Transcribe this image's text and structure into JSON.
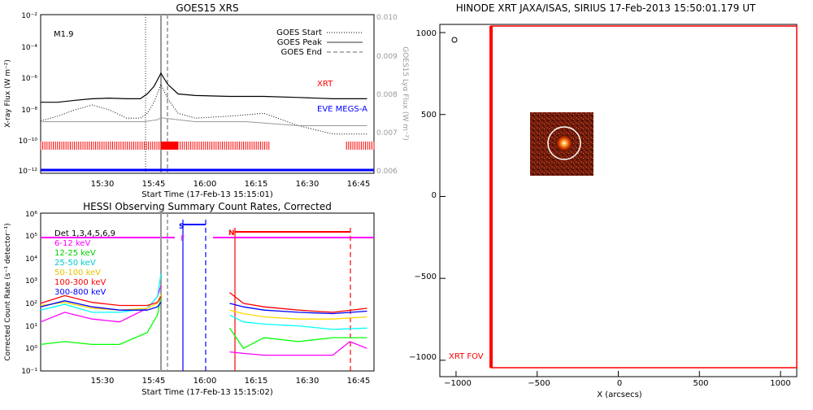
{
  "goes_panel": {
    "title": "GOES15 XRS",
    "flare_class": "M1.9",
    "ylabel_left": "X-ray Flux (W m⁻²)",
    "ylabel_right": "GOES15 Lyα Flux (W m⁻²)",
    "xlabel": "Start Time (17-Feb-13 15:15:01)",
    "x_ticks": [
      "15:30",
      "15:45",
      "16:00",
      "16:15",
      "16:30",
      "16:45"
    ],
    "y_ticks_left": [
      "10⁻¹²",
      "10⁻¹⁰",
      "10⁻⁸",
      "10⁻⁶",
      "10⁻⁴",
      "10⁻²"
    ],
    "y_ticks_right": [
      "0.006",
      "0.007",
      "0.008",
      "0.009",
      "0.010"
    ],
    "legend": [
      "GOES Start",
      "GOES Peak",
      "GOES End"
    ],
    "label_xrt": "XRT",
    "label_eve": "EVE MEGS-A"
  },
  "hessi_panel": {
    "title": "HESSI Observing Summary Count Rates, Corrected",
    "ylabel": "Corrected Count Rate (s⁻¹ detector⁻¹)",
    "xlabel": "Start Time (17-Feb-13 15:15:02)",
    "x_ticks": [
      "15:30",
      "15:45",
      "16:00",
      "16:15",
      "16:30",
      "16:45"
    ],
    "y_ticks": [
      "10⁻¹",
      "10⁰",
      "10¹",
      "10²",
      "10³",
      "10⁴",
      "10⁵",
      "10⁶"
    ],
    "legend": [
      "Det 1,3,4,5,6,9",
      "6-12 keV",
      "12-25 keV",
      "25-50 keV",
      "50-100 keV",
      "100-300 keV",
      "300-800 keV"
    ],
    "flag_s": "S",
    "flag_f": "F",
    "flag_n": "N"
  },
  "xrt_panel": {
    "title": "HINODE XRT JAXA/ISAS, SIRIUS 17-Feb-2013 15:50:01.179 UT",
    "xlabel": "X (arcsecs)",
    "x_ticks": [
      "−1000",
      "−500",
      "0",
      "500",
      "1000"
    ],
    "y_ticks": [
      "−1000",
      "−500",
      "0",
      "500",
      "1000"
    ],
    "fov_label": "XRT FOV"
  },
  "colors": {
    "xrt": "#ff0000",
    "eve": "#0000ff",
    "kev_6_12": "#ff00ff",
    "kev_12_25": "#00ff00",
    "kev_25_50": "#00ffff",
    "kev_50_100": "#ffd700",
    "kev_100_300": "#ff0000",
    "kev_300_800": "#0000ff"
  },
  "chart_data": [
    {
      "type": "line",
      "title": "GOES15 XRS",
      "xlabel": "Start Time (17-Feb-13 15:15:01)",
      "ylabel": "X-ray Flux (W m^-2)",
      "x_range": [
        "15:15",
        "16:52"
      ],
      "y_scale": "log",
      "ylim": [
        1e-12,
        0.01
      ],
      "y2lim": [
        0.006,
        0.01
      ],
      "markers": {
        "goes_start": "15:48",
        "goes_peak": "15:50",
        "goes_end": "15:52"
      },
      "series": [
        {
          "name": "GOES short",
          "x": [
            "15:15",
            "15:20",
            "15:25",
            "15:30",
            "15:35",
            "15:40",
            "15:44",
            "15:46",
            "15:48",
            "15:50",
            "15:52",
            "15:55",
            "16:00",
            "16:10",
            "16:20",
            "16:30",
            "16:40",
            "16:50"
          ],
          "y": [
            3e-08,
            3e-08,
            4e-08,
            5e-08,
            5.5e-08,
            5e-08,
            5e-08,
            1e-07,
            3e-07,
            2e-06,
            4e-07,
            1e-07,
            8e-08,
            7e-08,
            7e-08,
            6e-08,
            5e-08,
            5e-08
          ]
        },
        {
          "name": "GOES long",
          "x": [
            "15:15",
            "15:20",
            "15:25",
            "15:30",
            "15:35",
            "15:40",
            "15:44",
            "15:46",
            "15:48",
            "15:50",
            "15:52",
            "15:55",
            "16:00",
            "16:10",
            "16:20",
            "16:30",
            "16:40",
            "16:50"
          ],
          "y": [
            2e-09,
            4e-09,
            1e-08,
            2e-08,
            1e-08,
            3e-09,
            3e-09,
            6e-09,
            3e-08,
            4e-07,
            5e-08,
            6e-09,
            3e-09,
            4e-09,
            6e-09,
            1e-09,
            3e-10,
            3e-10
          ]
        },
        {
          "name": "Lyα",
          "x": [
            "15:15",
            "15:30",
            "15:45",
            "15:49",
            "15:50",
            "16:00",
            "16:15",
            "16:30",
            "16:40",
            "16:50"
          ],
          "y2": [
            0.0073,
            0.0073,
            0.0073,
            0.00735,
            0.0074,
            0.0073,
            0.0073,
            0.0072,
            0.0072,
            0.0072
          ]
        }
      ]
    },
    {
      "type": "line",
      "title": "HESSI Observing Summary Count Rates, Corrected",
      "xlabel": "Start Time (17-Feb-13 15:15:02)",
      "ylabel": "Corrected Count Rate (s^-1 detector^-1)",
      "x_range": [
        "15:15",
        "16:52"
      ],
      "y_scale": "log",
      "ylim": [
        0.1,
        1000000.0
      ],
      "series": [
        {
          "name": "6-12 keV",
          "x": [
            "15:15",
            "15:22",
            "15:30",
            "15:38",
            "15:46",
            "15:49",
            "15:50",
            "15:55",
            "16:10",
            "16:14",
            "16:20",
            "16:30",
            "16:40",
            "16:45",
            "16:50"
          ],
          "y": [
            15,
            40,
            20,
            15,
            60,
            200,
            600,
            null,
            0.7,
            0.6,
            0.5,
            0.5,
            0.5,
            2,
            1
          ]
        },
        {
          "name": "12-25 keV",
          "x": [
            "15:15",
            "15:22",
            "15:30",
            "15:38",
            "15:46",
            "15:49",
            "15:50",
            "15:55",
            "16:10",
            "16:14",
            "16:20",
            "16:30",
            "16:40",
            "16:50"
          ],
          "y": [
            1.5,
            2,
            1.5,
            1.5,
            5,
            30,
            200,
            null,
            8,
            1,
            3,
            2,
            3,
            3
          ]
        },
        {
          "name": "25-50 keV",
          "x": [
            "15:15",
            "15:22",
            "15:30",
            "15:38",
            "15:46",
            "15:49",
            "15:50",
            "15:55",
            "16:10",
            "16:14",
            "16:20",
            "16:30",
            "16:40",
            "16:50"
          ],
          "y": [
            50,
            90,
            40,
            40,
            60,
            200,
            2000,
            null,
            30,
            15,
            12,
            10,
            7,
            8
          ]
        },
        {
          "name": "50-100 keV",
          "x": [
            "15:15",
            "15:22",
            "15:30",
            "15:38",
            "15:46",
            "15:49",
            "15:50",
            "15:55",
            "16:10",
            "16:14",
            "16:20",
            "16:30",
            "16:40",
            "16:50"
          ],
          "y": [
            80,
            110,
            60,
            50,
            60,
            100,
            250,
            null,
            50,
            35,
            25,
            20,
            20,
            25
          ]
        },
        {
          "name": "100-300 keV",
          "x": [
            "15:15",
            "15:22",
            "15:30",
            "15:38",
            "15:46",
            "15:49",
            "15:50",
            "15:55",
            "16:10",
            "16:14",
            "16:20",
            "16:30",
            "16:40",
            "16:50"
          ],
          "y": [
            100,
            220,
            110,
            80,
            80,
            110,
            200,
            null,
            300,
            100,
            70,
            50,
            40,
            60
          ]
        },
        {
          "name": "300-800 keV",
          "x": [
            "15:15",
            "15:22",
            "15:30",
            "15:38",
            "15:46",
            "15:49",
            "15:50",
            "15:55",
            "16:10",
            "16:14",
            "16:20",
            "16:30",
            "16:40",
            "16:50"
          ],
          "y": [
            70,
            130,
            70,
            50,
            50,
            70,
            110,
            null,
            100,
            70,
            50,
            40,
            35,
            45
          ]
        }
      ],
      "flags": {
        "saa": [
          "15:54",
          "16:04"
        ],
        "night": [
          "16:13",
          "16:45"
        ],
        "flare": "15:51"
      }
    },
    {
      "type": "scatter",
      "title": "HINODE XRT JAXA/ISAS, SIRIUS 17-Feb-2013 15:50:01.179 UT",
      "xlabel": "X (arcsecs)",
      "xlim": [
        -1100,
        1100
      ],
      "ylim": [
        -1100,
        1050
      ],
      "xrt_fov": {
        "x": [
          -800,
          1100
        ],
        "y": [
          -1060,
          1030
        ]
      },
      "image_inset_center": [
        -350,
        320
      ],
      "source_circle_radius": 115
    }
  ]
}
